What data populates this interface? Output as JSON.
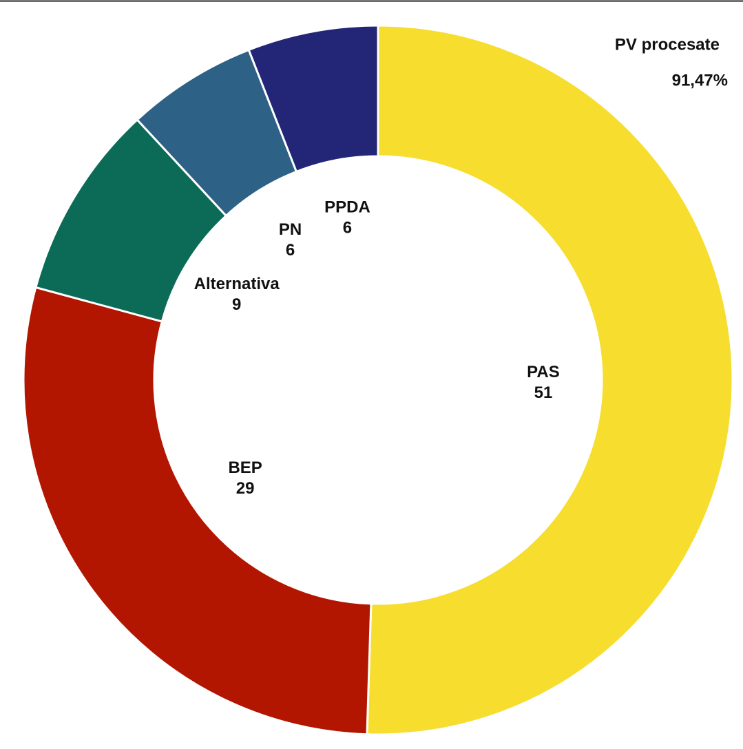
{
  "chart_data": {
    "type": "donut",
    "categories": [
      "PAS",
      "BEP",
      "Alternativa",
      "PN",
      "PPDA"
    ],
    "values": [
      51,
      29,
      9,
      6,
      6
    ],
    "colors": [
      "#f6dd2e",
      "#b21600",
      "#0b6b56",
      "#2e6186",
      "#232676"
    ],
    "annotations": [
      "PV procesate",
      "91,47%"
    ]
  }
}
